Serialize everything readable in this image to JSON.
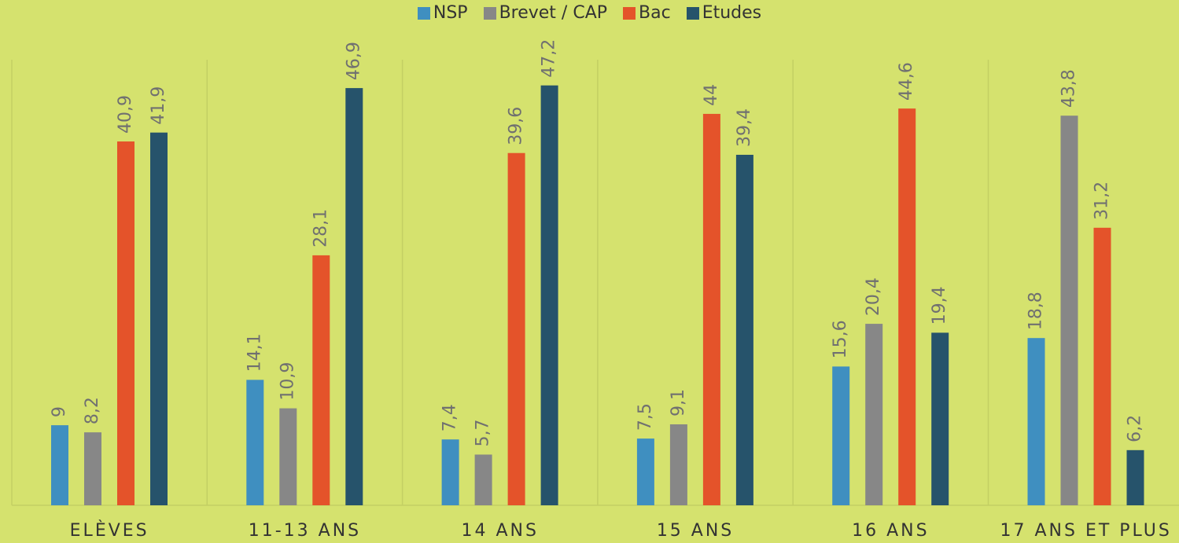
{
  "chart_data": {
    "type": "bar",
    "categories": [
      "ELÈVES",
      "11-13 ANS",
      "14 ANS",
      "15 ANS",
      "16 ANS",
      "17 ANS ET PLUS"
    ],
    "series": [
      {
        "name": "NSP",
        "color": "#3f8fc0",
        "values": [
          9,
          14.1,
          7.4,
          7.5,
          15.6,
          18.8
        ],
        "value_labels": [
          "9",
          "14,1",
          "7,4",
          "7,5",
          "15,6",
          "18,8"
        ]
      },
      {
        "name": "Brevet / CAP",
        "color": "#878787",
        "values": [
          8.2,
          10.9,
          5.7,
          9.1,
          20.4,
          43.8
        ],
        "value_labels": [
          "8,2",
          "10,9",
          "5,7",
          "9,1",
          "20,4",
          "43,8"
        ]
      },
      {
        "name": "Bac",
        "color": "#e4532a",
        "values": [
          40.9,
          28.1,
          39.6,
          44,
          44.6,
          31.2
        ],
        "value_labels": [
          "40,9",
          "28,1",
          "39,6",
          "44",
          "44,6",
          "31,2"
        ]
      },
      {
        "name": "Etudes",
        "color": "#26536b",
        "values": [
          41.9,
          46.9,
          47.2,
          39.4,
          19.4,
          6.2
        ],
        "value_labels": [
          "41,9",
          "46,9",
          "47,2",
          "39,4",
          "19,4",
          "6,2"
        ]
      }
    ],
    "ylim": [
      0,
      50
    ],
    "legend": "top"
  }
}
